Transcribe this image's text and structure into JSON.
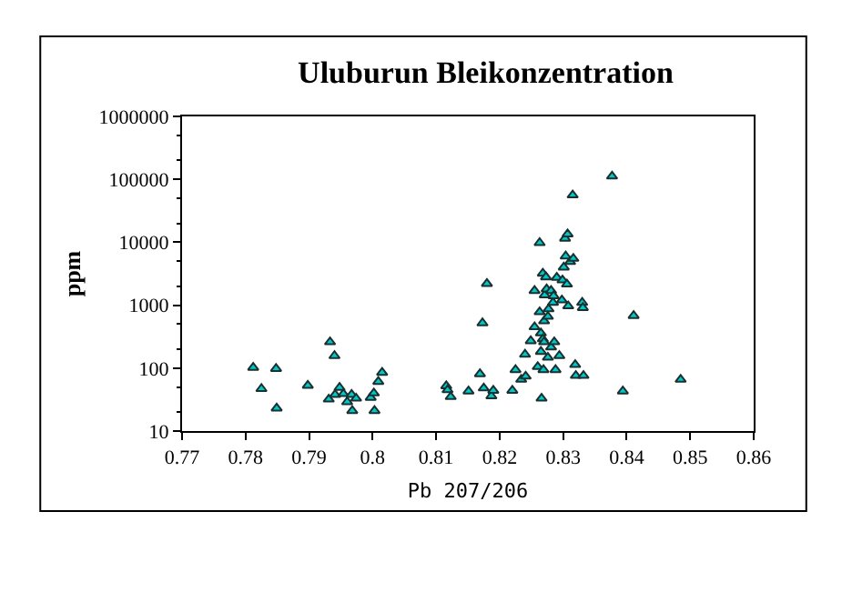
{
  "chart_data": {
    "type": "scatter",
    "title": "Uluburun Bleikonzentration",
    "xlabel": "Pb 207/206",
    "ylabel": "ppm",
    "log": "y",
    "marker": "triangle",
    "xlim": [
      0.77,
      0.86
    ],
    "xticks": [
      0.77,
      0.78,
      0.79,
      0.8,
      0.81,
      0.82,
      0.83,
      0.84,
      0.85,
      0.86
    ],
    "ylim": [
      10,
      1000000
    ],
    "yticks": [
      10,
      100,
      1000,
      10000,
      100000,
      1000000
    ],
    "series": [
      {
        "color": "#00c8c8",
        "x": [
          0.7812,
          0.7825,
          0.7848,
          0.7849,
          0.7898,
          0.7933,
          0.794,
          0.7931,
          0.7941,
          0.7948,
          0.7954,
          0.796,
          0.7967,
          0.7968,
          0.7974,
          0.7997,
          0.8002,
          0.8003,
          0.8009,
          0.8015,
          0.8116,
          0.8118,
          0.8123,
          0.8151,
          0.8169,
          0.8173,
          0.8175,
          0.818,
          0.8187,
          0.819,
          0.822,
          0.8225,
          0.8234,
          0.8241,
          0.824,
          0.8249,
          0.8255,
          0.8255,
          0.826,
          0.8263,
          0.8263,
          0.8265,
          0.8265,
          0.8266,
          0.8268,
          0.8268,
          0.8269,
          0.827,
          0.827,
          0.8271,
          0.8273,
          0.8274,
          0.8276,
          0.8276,
          0.8277,
          0.8281,
          0.8281,
          0.8284,
          0.8285,
          0.8286,
          0.8288,
          0.829,
          0.8294,
          0.8298,
          0.8299,
          0.8301,
          0.8303,
          0.8307,
          0.8304,
          0.8306,
          0.8308,
          0.8311,
          0.8315,
          0.8316,
          0.8319,
          0.832,
          0.833,
          0.8331,
          0.8332,
          0.8377,
          0.8394,
          0.8411,
          0.8485
        ],
        "values": [
          102,
          47,
          98,
          23,
          53,
          260,
          157,
          32,
          38,
          49,
          39,
          29,
          38,
          21,
          33,
          34,
          40,
          21,
          61,
          85,
          52,
          45,
          35,
          43,
          81,
          520,
          48,
          2200,
          36,
          44,
          44,
          94,
          66,
          74,
          165,
          270,
          450,
          1700,
          105,
          9800,
          780,
          360,
          183,
          33,
          290,
          3200,
          94,
          560,
          260,
          1450,
          2800,
          1800,
          660,
          148,
          870,
          215,
          1700,
          1100,
          1400,
          260,
          94,
          2750,
          157,
          1200,
          2500,
          4000,
          11500,
          13500,
          6000,
          2150,
          970,
          4900,
          56000,
          5500,
          113,
          76,
          1100,
          910,
          76,
          112000,
          43,
          680,
          66
        ]
      }
    ]
  }
}
